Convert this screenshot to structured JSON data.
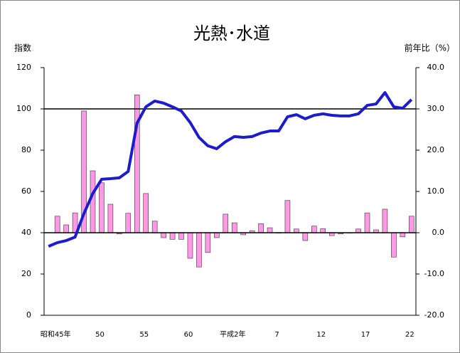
{
  "chart_data": {
    "type": "bar-line",
    "title": "光熱･水道",
    "y_label": "指数",
    "y2_label": "前年比（%）",
    "categories": [
      "昭和45年",
      null,
      null,
      null,
      null,
      "50",
      null,
      null,
      null,
      null,
      "55",
      null,
      null,
      null,
      null,
      "60",
      null,
      null,
      null,
      null,
      "平成2年",
      null,
      null,
      null,
      null,
      "7",
      null,
      null,
      null,
      null,
      "12",
      null,
      null,
      null,
      null,
      "17",
      null,
      null,
      null,
      null,
      "22",
      null
    ],
    "series": [
      {
        "name": "前年比",
        "type": "bar",
        "axis": "y2",
        "color": "#ff99e6",
        "values": [
          null,
          4.0,
          1.9,
          4.8,
          29.5,
          15.0,
          12.1,
          6.9,
          -0.3,
          4.7,
          33.4,
          9.5,
          2.8,
          -1.2,
          -1.6,
          -1.6,
          -6.2,
          -8.3,
          -4.8,
          -1.2,
          4.5,
          2.4,
          -0.5,
          0.5,
          2.2,
          1.2,
          0,
          7.8,
          0.9,
          -1.9,
          1.6,
          1.0,
          -0.7,
          -0.3,
          0,
          0.9,
          4.8,
          0.7,
          5.7,
          -5.9,
          -1.0,
          4.0
        ]
      },
      {
        "name": "指数",
        "type": "line",
        "color": "#1c1ccc",
        "values": [
          33.4,
          35.2,
          36.2,
          37.9,
          49.3,
          59.0,
          65.9,
          66.2,
          66.6,
          69.7,
          93.1,
          101.0,
          103.8,
          102.8,
          101.0,
          99.0,
          93.4,
          86.2,
          82.1,
          80.7,
          84.1,
          86.6,
          86.2,
          86.6,
          88.3,
          89.3,
          89.3,
          96.2,
          97.2,
          95.2,
          96.9,
          97.6,
          96.9,
          96.6,
          96.6,
          97.6,
          101.7,
          102.4,
          107.9,
          101.0,
          100.3,
          104.5
        ]
      }
    ],
    "ylim": [
      0,
      120
    ],
    "yticks": [
      0,
      20,
      40,
      60,
      80,
      100,
      120
    ],
    "y2lim": [
      -20,
      40
    ],
    "y2ticks": [
      {
        "value": -20,
        "label": "-20.0"
      },
      {
        "value": -10,
        "label": "-10.0"
      },
      {
        "value": 0,
        "label": "0.0"
      },
      {
        "value": 10,
        "label": "10.0"
      },
      {
        "value": 20,
        "label": "20.0"
      },
      {
        "value": 30,
        "label": "30.0"
      },
      {
        "value": 40,
        "label": "40.0"
      }
    ],
    "reference_lines": [
      100
    ]
  }
}
